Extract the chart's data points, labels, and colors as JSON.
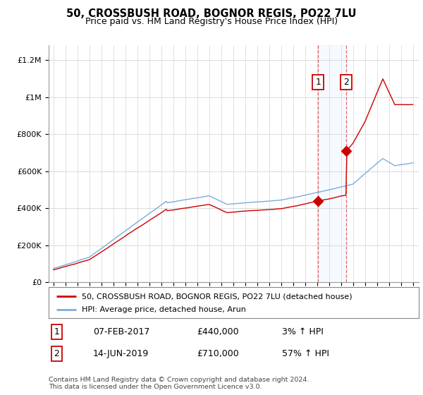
{
  "title": "50, CROSSBUSH ROAD, BOGNOR REGIS, PO22 7LU",
  "subtitle": "Price paid vs. HM Land Registry's House Price Index (HPI)",
  "legend_line1": "50, CROSSBUSH ROAD, BOGNOR REGIS, PO22 7LU (detached house)",
  "legend_line2": "HPI: Average price, detached house, Arun",
  "annotation1_label": "1",
  "annotation1_date": "07-FEB-2017",
  "annotation1_price": "£440,000",
  "annotation1_hpi": "3% ↑ HPI",
  "annotation2_label": "2",
  "annotation2_date": "14-JUN-2019",
  "annotation2_price": "£710,000",
  "annotation2_hpi": "57% ↑ HPI",
  "footer": "Contains HM Land Registry data © Crown copyright and database right 2024.\nThis data is licensed under the Open Government Licence v3.0.",
  "sale1_year": 2017.1,
  "sale1_value": 440000,
  "sale2_year": 2019.45,
  "sale2_value": 710000,
  "hpi_color": "#7aaddd",
  "price_color": "#cc0000",
  "highlight_color": "#ddeeff",
  "vline_color": "#dd4444"
}
